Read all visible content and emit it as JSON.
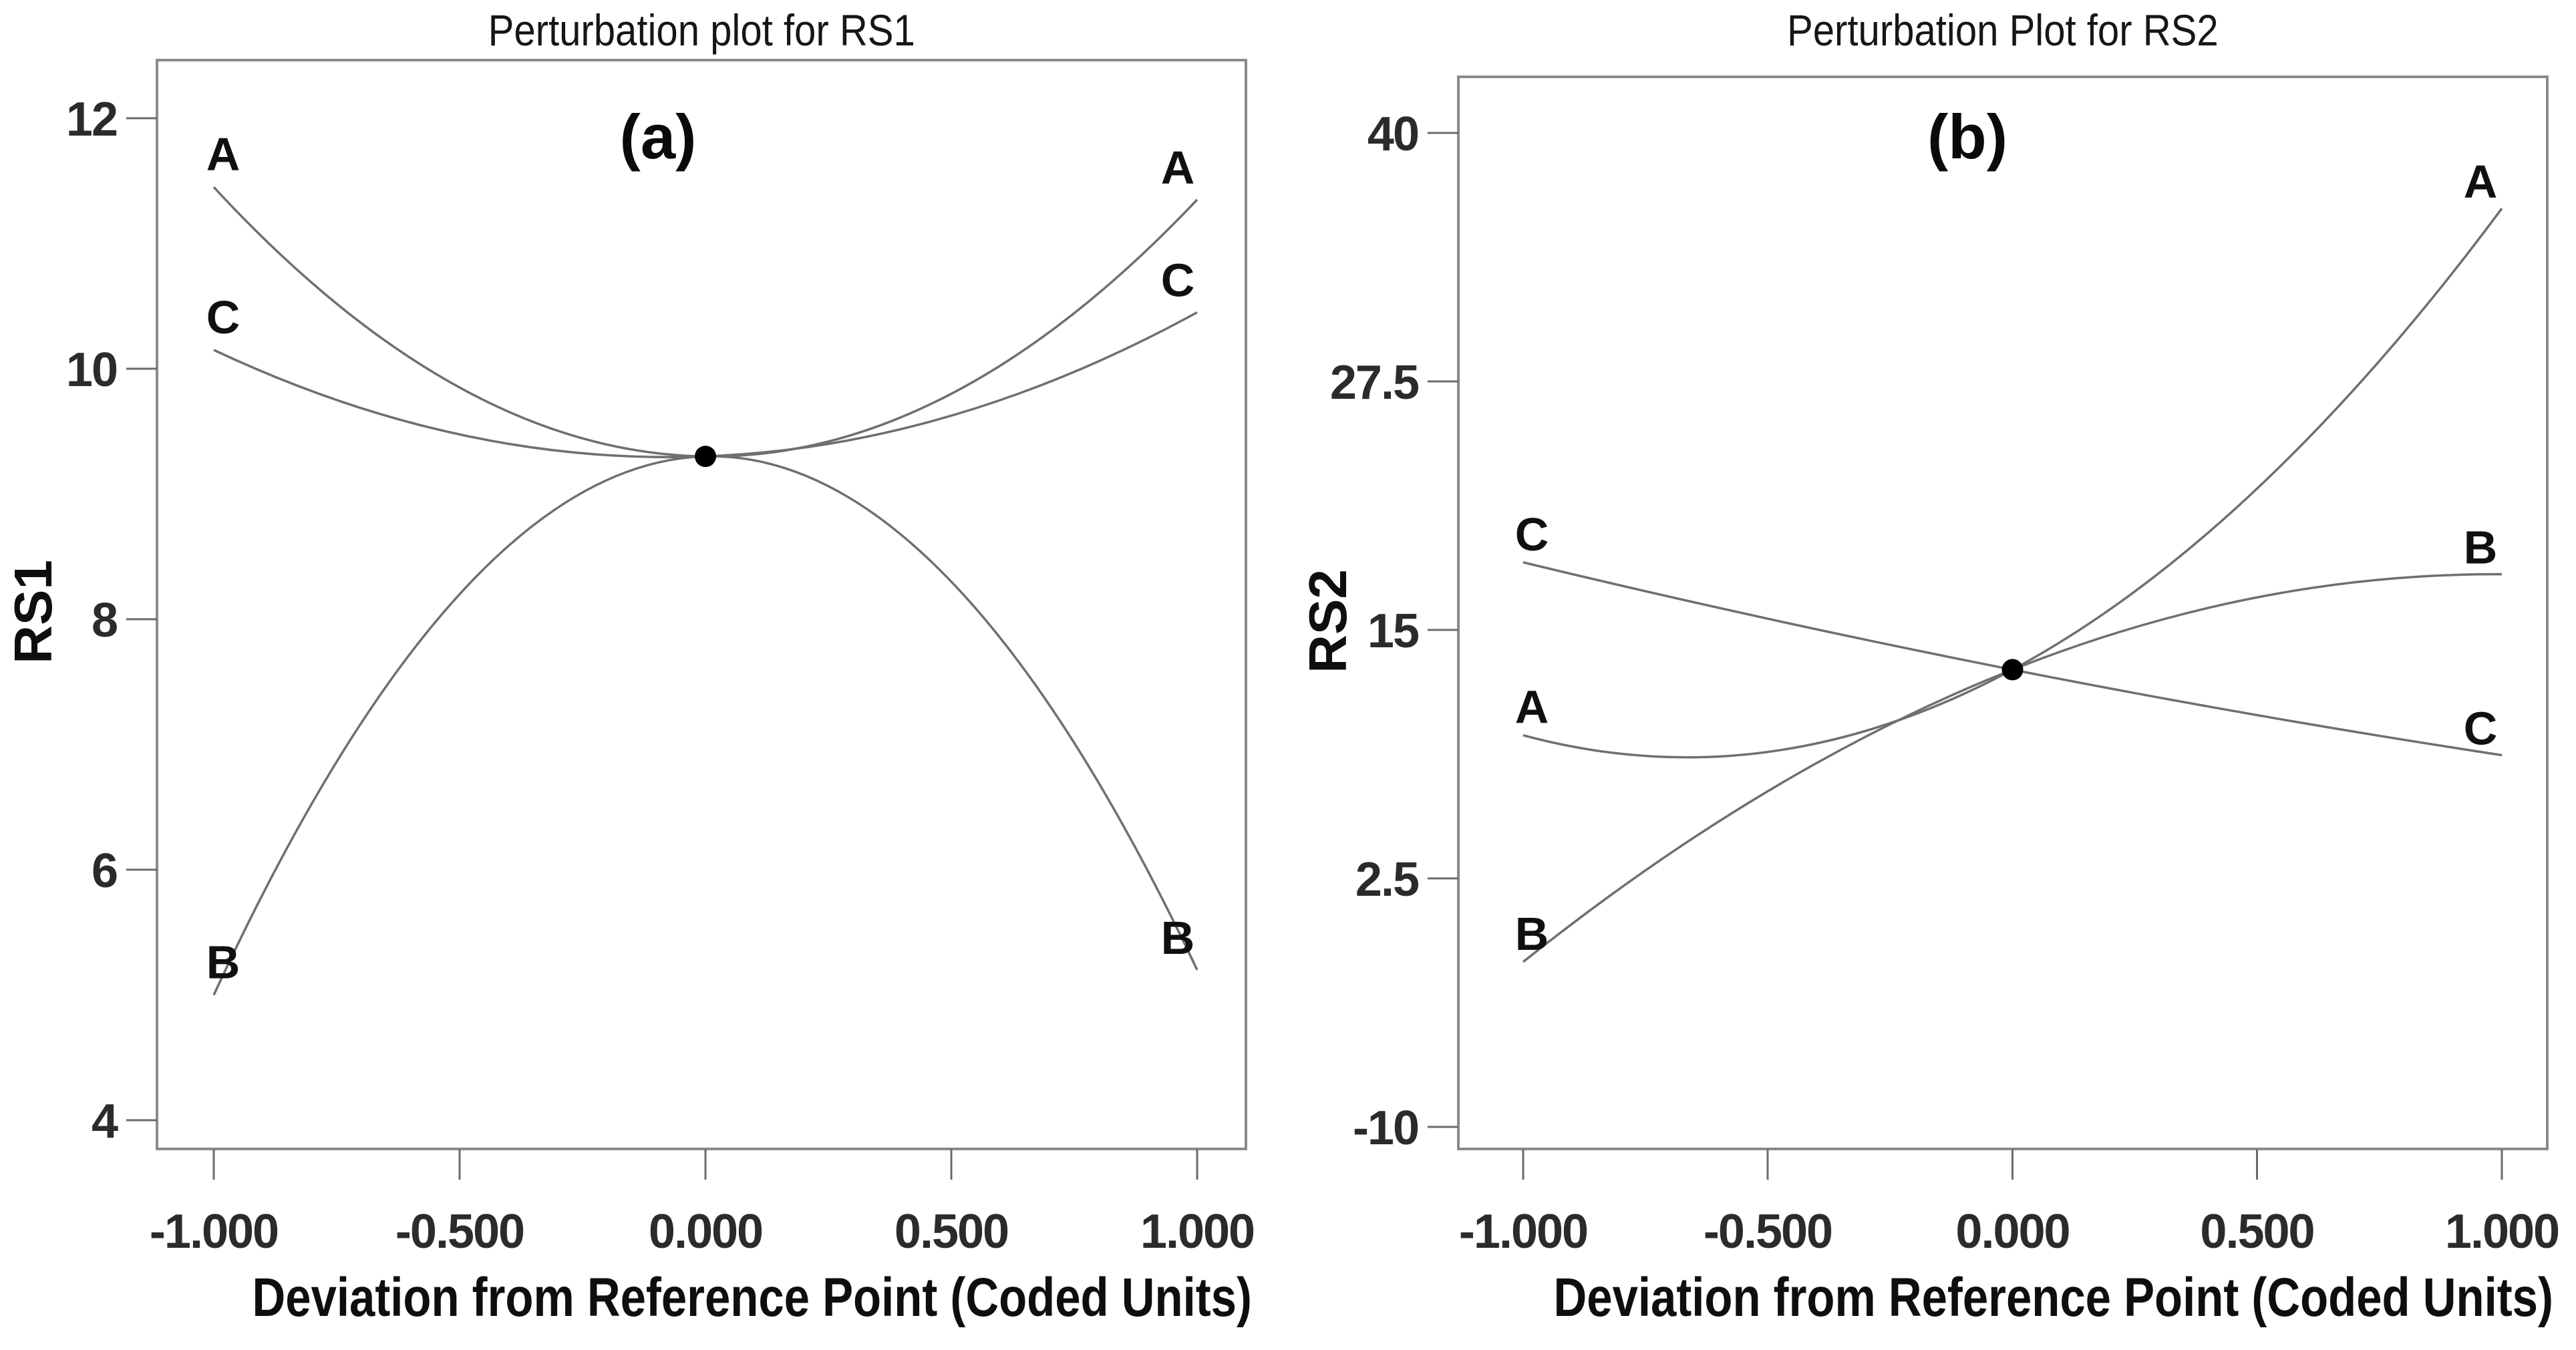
{
  "page": {
    "background_color": "#ffffff"
  },
  "chart_data": [
    {
      "type": "line",
      "panel": "(a)",
      "title": "Perturbation plot for RS1",
      "xlabel": "Deviation from Reference Point (Coded Units)",
      "ylabel": "RS1",
      "x_tick_labels": [
        "-1.000",
        "-0.500",
        "0.000",
        "0.500",
        "1.000"
      ],
      "x_tick_values": [
        -1.0,
        -0.5,
        0.0,
        0.5,
        1.0
      ],
      "y_tick_labels": [
        "12",
        "10",
        "8",
        "6",
        "4"
      ],
      "y_tick_values": [
        12,
        10,
        8,
        6,
        4
      ],
      "xlim": [
        -1.15,
        1.15
      ],
      "ylim": [
        3.8,
        12.5
      ],
      "grid": false,
      "legend_position": "none",
      "x": [
        -1.0,
        0.0,
        1.0
      ],
      "series": [
        {
          "name": "A",
          "values": [
            11.45,
            9.3,
            11.35
          ]
        },
        {
          "name": "B",
          "values": [
            5.0,
            9.3,
            5.2
          ]
        },
        {
          "name": "C",
          "values": [
            10.15,
            9.3,
            10.45
          ]
        }
      ],
      "reference_point": {
        "x": 0.0,
        "y": 9.3
      },
      "curve_color": "#6f6f6f",
      "reference_dot_color": "#000000",
      "frame_color": "#8a8a8a"
    },
    {
      "type": "line",
      "panel": "(b)",
      "title": "Perturbation Plot for RS2",
      "xlabel": "Deviation from Reference Point (Coded Units)",
      "ylabel": "RS2",
      "x_tick_labels": [
        "-1.000",
        "-0.500",
        "0.000",
        "0.500",
        "1.000"
      ],
      "x_tick_values": [
        -1.0,
        -0.5,
        0.0,
        0.5,
        1.0
      ],
      "y_tick_labels": [
        "40",
        "27.5",
        "15",
        "2.5",
        "-10"
      ],
      "y_tick_values": [
        40,
        27.5,
        15,
        2.5,
        -10
      ],
      "xlim": [
        -1.15,
        1.15
      ],
      "ylim": [
        -11,
        41
      ],
      "grid": false,
      "legend_position": "none",
      "x": [
        -1.0,
        0.0,
        1.0
      ],
      "series": [
        {
          "name": "A",
          "values": [
            9.7,
            13.0,
            36.2
          ]
        },
        {
          "name": "B",
          "values": [
            -1.7,
            13.0,
            17.8
          ]
        },
        {
          "name": "C",
          "values": [
            18.4,
            13.0,
            8.7
          ]
        }
      ],
      "reference_point": {
        "x": 0.0,
        "y": 13.0
      },
      "curve_color": "#6f6f6f",
      "reference_dot_color": "#000000",
      "frame_color": "#8a8a8a"
    }
  ]
}
